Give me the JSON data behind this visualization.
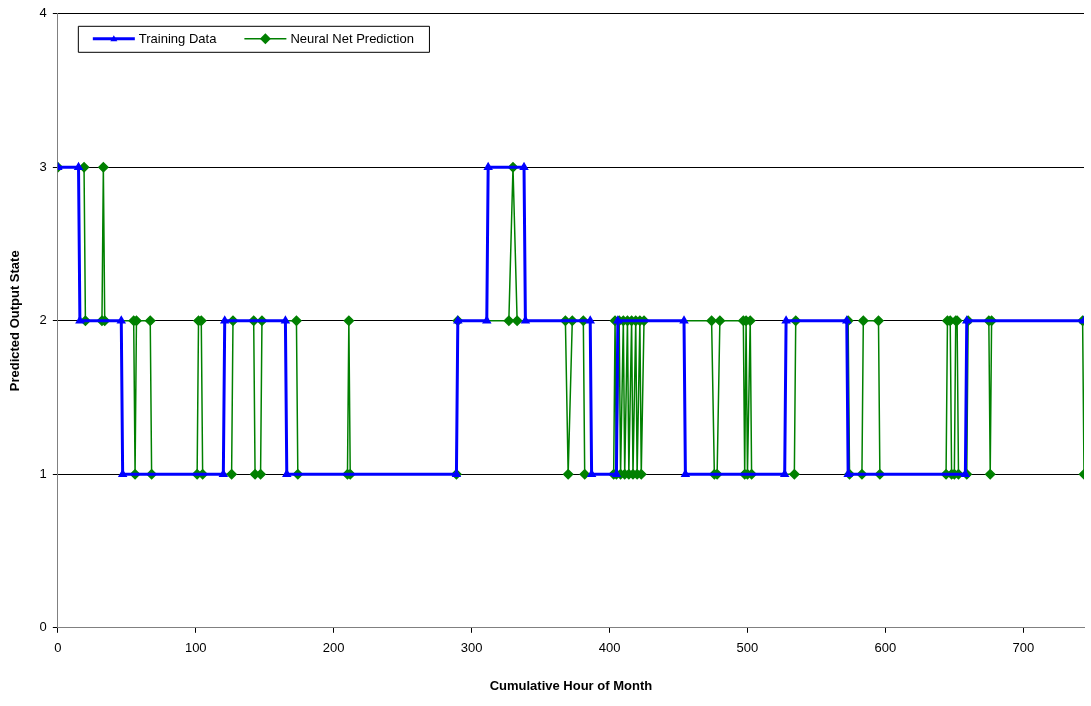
{
  "chart_data": {
    "type": "line",
    "xlabel": "Cumulative Hour of Month",
    "ylabel": "Predicted Output State",
    "xlim": [
      0,
      744
    ],
    "xticks": [
      0,
      100,
      200,
      300,
      400,
      500,
      600,
      700
    ],
    "ylim": [
      0,
      4
    ],
    "yticks": [
      0,
      1,
      2,
      3,
      4
    ],
    "grid": "y",
    "legend": "top left",
    "series": [
      {
        "name": "Training Data",
        "color": "#0000ff",
        "marker": "triangle",
        "x": [
          0,
          15,
          16,
          46,
          47,
          120,
          121,
          165,
          166,
          289,
          290,
          311,
          312,
          338,
          339,
          386,
          387,
          405,
          406,
          454,
          455,
          527,
          528,
          572,
          573,
          658,
          659,
          744
        ],
        "values": [
          3,
          3,
          2,
          2,
          1,
          1,
          2,
          2,
          1,
          1,
          2,
          2,
          3,
          3,
          2,
          2,
          1,
          1,
          2,
          2,
          1,
          1,
          2,
          2,
          1,
          1,
          2,
          2
        ]
      },
      {
        "name": "Neural Net Prediction",
        "color": "#008000",
        "marker": "diamond",
        "x": [
          0,
          19,
          20,
          32,
          33,
          34,
          55,
          56,
          57,
          67,
          68,
          101,
          102,
          104,
          105,
          126,
          127,
          142,
          143,
          147,
          148,
          173,
          174,
          210,
          211,
          212,
          289,
          290,
          327,
          330,
          333,
          368,
          370,
          373,
          381,
          382,
          403,
          404,
          405,
          407,
          408,
          410,
          411,
          413,
          414,
          416,
          417,
          419,
          420,
          422,
          423,
          425,
          474,
          476,
          478,
          480,
          497,
          498,
          499,
          500,
          502,
          503,
          534,
          535,
          573,
          574,
          583,
          584,
          595,
          596,
          644,
          645,
          647,
          648,
          650,
          651,
          652,
          653,
          659,
          660,
          675,
          676,
          677,
          743,
          744
        ],
        "values": [
          3,
          3,
          2,
          2,
          3,
          2,
          2,
          1,
          2,
          2,
          1,
          1,
          2,
          2,
          1,
          1,
          2,
          2,
          1,
          1,
          2,
          2,
          1,
          1,
          2,
          1,
          1,
          2,
          2,
          3,
          2,
          2,
          1,
          2,
          2,
          1,
          1,
          2,
          1,
          2,
          1,
          2,
          1,
          2,
          1,
          2,
          1,
          2,
          1,
          2,
          1,
          2,
          2,
          1,
          1,
          2,
          2,
          1,
          2,
          1,
          2,
          1,
          1,
          2,
          2,
          1,
          1,
          2,
          2,
          1,
          1,
          2,
          2,
          1,
          1,
          2,
          2,
          1,
          1,
          2,
          2,
          1,
          2,
          2,
          1
        ]
      }
    ]
  }
}
